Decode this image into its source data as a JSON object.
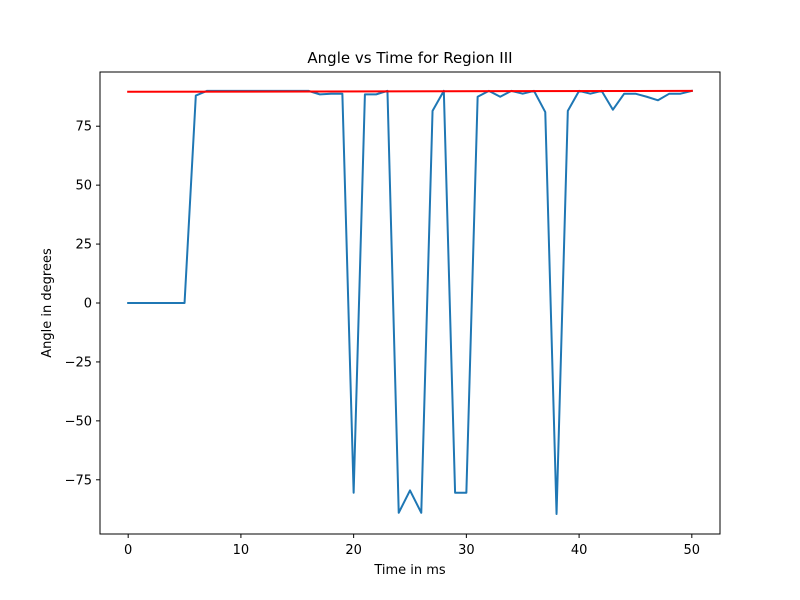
{
  "chart_data": {
    "type": "line",
    "title": "Angle vs Time for Region III",
    "xlabel": "Time in ms",
    "ylabel": "Angle in degrees",
    "xlim": [
      -2.5,
      52.5
    ],
    "ylim": [
      -98,
      98
    ],
    "xticks": [
      0,
      10,
      20,
      30,
      40,
      50
    ],
    "xtick_labels": [
      "0",
      "10",
      "20",
      "30",
      "40",
      "50"
    ],
    "yticks": [
      75,
      50,
      25,
      0,
      -25,
      -50,
      -75
    ],
    "ytick_labels": [
      "75",
      "50",
      "25",
      "0",
      "−25",
      "−50",
      "−75"
    ],
    "grid": false,
    "series": [
      {
        "color": "#1f77b4",
        "x": [
          0,
          1,
          2,
          3,
          4,
          5,
          6,
          7,
          8,
          9,
          10,
          11,
          12,
          13,
          14,
          15,
          16,
          17,
          18,
          19,
          20,
          21,
          22,
          23,
          24,
          25,
          26,
          27,
          28,
          29,
          30,
          31,
          32,
          33,
          34,
          35,
          36,
          37,
          38,
          39,
          40,
          41,
          42,
          43,
          44,
          45,
          46,
          47,
          48,
          49,
          50
        ],
        "y": [
          0,
          0,
          0,
          0,
          0,
          0,
          88,
          90,
          90,
          90,
          90,
          90,
          90,
          90,
          90,
          90,
          90,
          88.5,
          88.8,
          88.8,
          -80.5,
          88.5,
          88.5,
          90,
          -89,
          -79.5,
          -89,
          81.5,
          90,
          -80.5,
          -80.5,
          87.5,
          90,
          87.5,
          90,
          88.8,
          90,
          81,
          -89.5,
          81.5,
          90,
          88.8,
          90,
          82,
          88.8,
          88.8,
          87.5,
          86,
          88.8,
          88.8,
          90
        ]
      },
      {
        "color": "#ff0000",
        "x": [
          0,
          50
        ],
        "y": [
          89.6,
          90
        ]
      }
    ]
  }
}
